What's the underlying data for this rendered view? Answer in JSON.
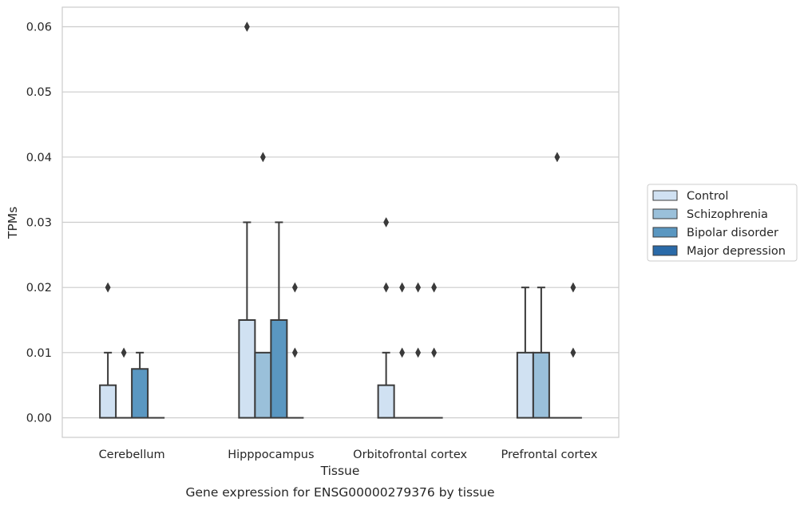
{
  "chart_data": {
    "type": "boxplot",
    "title": "",
    "caption": "Gene expression for ENSG00000279376 by tissue",
    "xlabel": "Tissue",
    "ylabel": "TPMs",
    "ylim": [
      -0.003,
      0.063
    ],
    "yticks": [
      0.0,
      0.01,
      0.02,
      0.03,
      0.04,
      0.05,
      0.06
    ],
    "ytick_labels": [
      "0.00",
      "0.01",
      "0.02",
      "0.03",
      "0.04",
      "0.05",
      "0.06"
    ],
    "grid": "y",
    "legend_placement": "right",
    "categories": [
      "Cerebellum",
      "Hipppocampus",
      "Orbitofrontal cortex",
      "Prefrontal cortex"
    ],
    "series": [
      {
        "name": "Control",
        "color": "#d0e1f2",
        "boxes": [
          {
            "q1": 0.0,
            "median": 0.0,
            "q3": 0.005,
            "whisker_low": 0.0,
            "whisker_high": 0.01,
            "outliers": [
              0.02
            ]
          },
          {
            "q1": 0.0,
            "median": 0.0,
            "q3": 0.015,
            "whisker_low": 0.0,
            "whisker_high": 0.03,
            "outliers": [
              0.06
            ]
          },
          {
            "q1": 0.0,
            "median": 0.0,
            "q3": 0.005,
            "whisker_low": 0.0,
            "whisker_high": 0.01,
            "outliers": [
              0.02,
              0.03
            ]
          },
          {
            "q1": 0.0,
            "median": 0.0,
            "q3": 0.01,
            "whisker_low": 0.0,
            "whisker_high": 0.02,
            "outliers": []
          }
        ]
      },
      {
        "name": "Schizophrenia",
        "color": "#9ac0da",
        "boxes": [
          {
            "q1": 0.0,
            "median": 0.0,
            "q3": 0.0,
            "whisker_low": 0.0,
            "whisker_high": 0.0,
            "outliers": [
              0.01
            ]
          },
          {
            "q1": 0.0,
            "median": 0.0,
            "q3": 0.01,
            "whisker_low": 0.0,
            "whisker_high": 0.01,
            "outliers": [
              0.04
            ]
          },
          {
            "q1": 0.0,
            "median": 0.0,
            "q3": 0.0,
            "whisker_low": 0.0,
            "whisker_high": 0.0,
            "outliers": [
              0.01,
              0.02
            ]
          },
          {
            "q1": 0.0,
            "median": 0.0,
            "q3": 0.01,
            "whisker_low": 0.0,
            "whisker_high": 0.02,
            "outliers": []
          }
        ]
      },
      {
        "name": "Bipolar disorder",
        "color": "#5a97c1",
        "boxes": [
          {
            "q1": 0.0,
            "median": 0.0,
            "q3": 0.0075,
            "whisker_low": 0.0,
            "whisker_high": 0.01,
            "outliers": []
          },
          {
            "q1": 0.0,
            "median": 0.0,
            "q3": 0.015,
            "whisker_low": 0.0,
            "whisker_high": 0.03,
            "outliers": []
          },
          {
            "q1": 0.0,
            "median": 0.0,
            "q3": 0.0,
            "whisker_low": 0.0,
            "whisker_high": 0.0,
            "outliers": [
              0.01,
              0.02
            ]
          },
          {
            "q1": 0.0,
            "median": 0.0,
            "q3": 0.0,
            "whisker_low": 0.0,
            "whisker_high": 0.0,
            "outliers": [
              0.04
            ]
          }
        ]
      },
      {
        "name": "Major depression",
        "color": "#2a6aa8",
        "boxes": [
          {
            "q1": 0.0,
            "median": 0.0,
            "q3": 0.0,
            "whisker_low": 0.0,
            "whisker_high": 0.0,
            "outliers": []
          },
          {
            "q1": 0.0,
            "median": 0.0,
            "q3": 0.0,
            "whisker_low": 0.0,
            "whisker_high": 0.0,
            "outliers": [
              0.01,
              0.02
            ]
          },
          {
            "q1": 0.0,
            "median": 0.0,
            "q3": 0.0,
            "whisker_low": 0.0,
            "whisker_high": 0.0,
            "outliers": [
              0.01,
              0.02
            ]
          },
          {
            "q1": 0.0,
            "median": 0.0,
            "q3": 0.0,
            "whisker_low": 0.0,
            "whisker_high": 0.0,
            "outliers": [
              0.01,
              0.02
            ]
          }
        ]
      }
    ]
  }
}
